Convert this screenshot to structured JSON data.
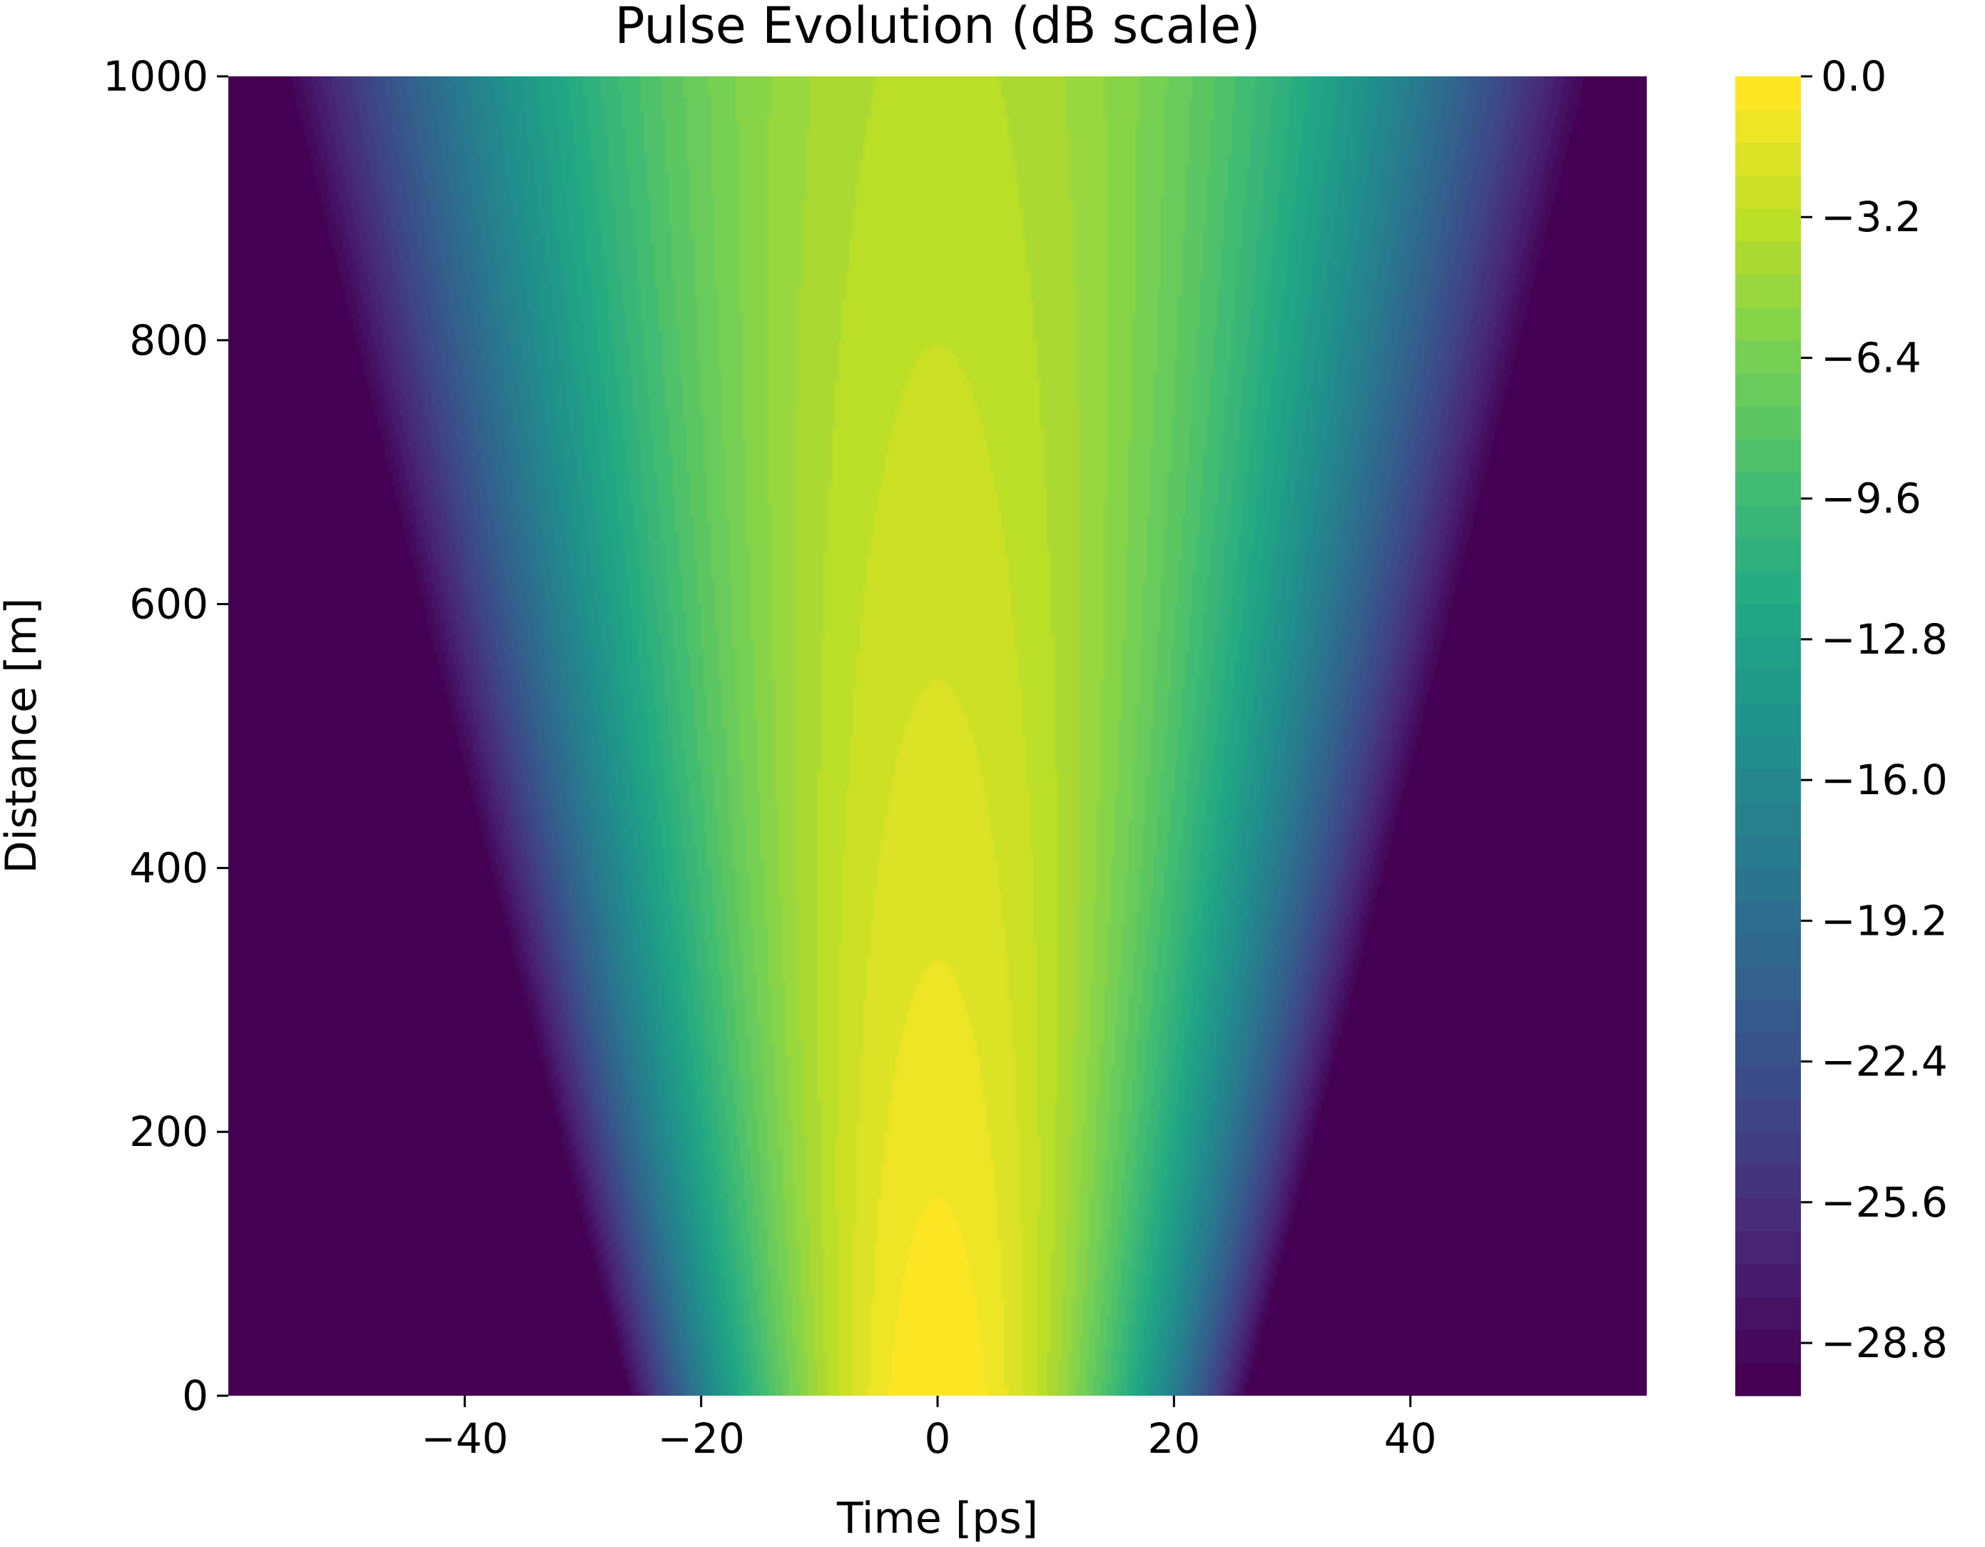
{
  "chart_data": {
    "type": "heatmap",
    "plot_kind": "filled-contour",
    "title": "Pulse Evolution (dB scale)",
    "xlabel": "Time [ps]",
    "ylabel": "Distance [m]",
    "xlim": [
      -60,
      60
    ],
    "ylim": [
      0,
      1000
    ],
    "xticks": [
      {
        "value": -40,
        "label": "−40"
      },
      {
        "value": -20,
        "label": "−20"
      },
      {
        "value": 0,
        "label": "0"
      },
      {
        "value": 20,
        "label": "20"
      },
      {
        "value": 40,
        "label": "40"
      }
    ],
    "yticks": [
      {
        "value": 0,
        "label": "0"
      },
      {
        "value": 200,
        "label": "200"
      },
      {
        "value": 400,
        "label": "400"
      },
      {
        "value": 600,
        "label": "600"
      },
      {
        "value": 800,
        "label": "800"
      },
      {
        "value": 1000,
        "label": "1000"
      }
    ],
    "colormap": "viridis",
    "colorbar": {
      "range": [
        -30,
        0
      ],
      "levels": 40,
      "ticks": [
        {
          "value": 0.0,
          "label": "0.0"
        },
        {
          "value": -3.2,
          "label": "−3.2"
        },
        {
          "value": -6.4,
          "label": "−6.4"
        },
        {
          "value": -9.6,
          "label": "−9.6"
        },
        {
          "value": -12.8,
          "label": "−12.8"
        },
        {
          "value": -16.0,
          "label": "−16.0"
        },
        {
          "value": -19.2,
          "label": "−19.2"
        },
        {
          "value": -22.4,
          "label": "−22.4"
        },
        {
          "value": -25.6,
          "label": "−25.6"
        },
        {
          "value": -28.8,
          "label": "−28.8"
        }
      ]
    },
    "field": {
      "peak_db": 0,
      "floor_db": -30,
      "width_profile": [
        {
          "distance": 0,
          "pulse_width_ps": 10.0
        },
        {
          "distance": 1000,
          "pulse_width_ps": 22.5
        }
      ]
    }
  }
}
